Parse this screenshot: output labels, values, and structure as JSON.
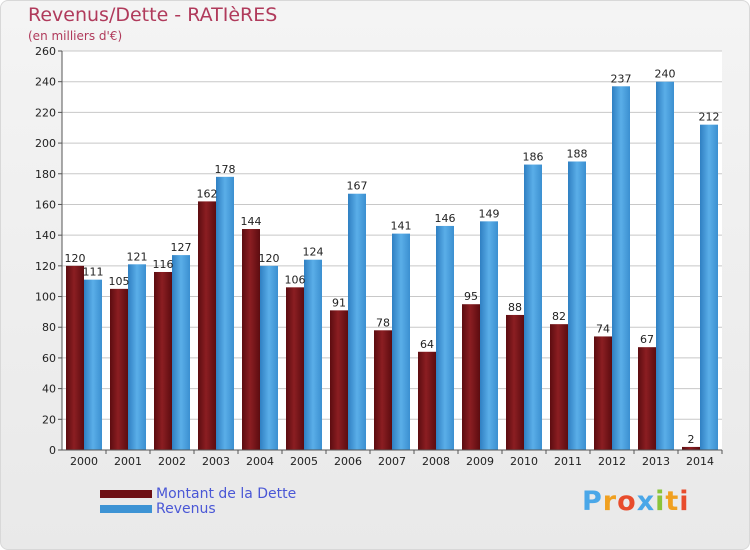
{
  "title": "Revenus/Dette - RATIèRES",
  "subtitle": "(en milliers d'€)",
  "colors": {
    "dette": "#7a1216",
    "revenus": "#3d93d4",
    "grid": "#c8c8c8",
    "background": "#eeeeee"
  },
  "logo": {
    "text": "Proxiti",
    "letters": [
      "P",
      "r",
      "o",
      "x",
      "i",
      "t",
      "i"
    ],
    "colors": [
      "#4aa7e8",
      "#f0a020",
      "#e84c2c",
      "#4aa7e8",
      "#8ac43a",
      "#f0a020",
      "#e84c2c"
    ]
  },
  "chart_data": {
    "type": "bar",
    "categories": [
      "2000",
      "2001",
      "2002",
      "2003",
      "2004",
      "2005",
      "2006",
      "2007",
      "2008",
      "2009",
      "2010",
      "2011",
      "2012",
      "2013",
      "2014"
    ],
    "series": [
      {
        "name": "Montant de la Dette",
        "values": [
          120,
          105,
          116,
          162,
          144,
          106,
          91,
          78,
          64,
          95,
          88,
          82,
          74,
          67,
          2
        ]
      },
      {
        "name": "Revenus",
        "values": [
          111,
          121,
          127,
          178,
          120,
          124,
          167,
          141,
          146,
          149,
          186,
          188,
          237,
          240,
          212
        ]
      }
    ],
    "title": "Revenus/Dette - RATIèRES",
    "subtitle": "(en milliers d'€)",
    "ylim": [
      0,
      260
    ],
    "yticks": [
      0,
      20,
      40,
      60,
      80,
      100,
      120,
      140,
      160,
      180,
      200,
      220,
      240,
      260
    ],
    "grid": true,
    "legend_position": "bottom-left"
  }
}
